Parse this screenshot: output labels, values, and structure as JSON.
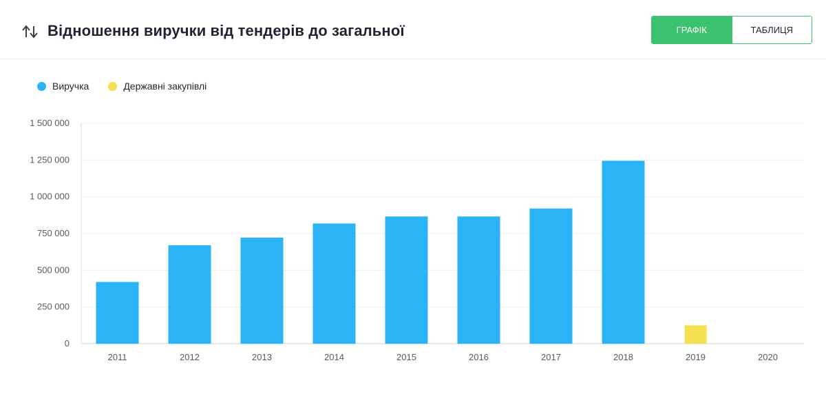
{
  "header": {
    "title": "Відношення виручки від тендерів до загальної",
    "tabs": [
      {
        "label": "ГРАФІК",
        "active": true
      },
      {
        "label": "ТАБЛИЦЯ",
        "active": false
      }
    ]
  },
  "colors": {
    "revenue": "#2bb4f5",
    "procurement": "#f5e04f",
    "accent": "#3cc26f"
  },
  "icons": {
    "sort": "sort-arrows-icon"
  },
  "chart_data": {
    "type": "bar",
    "categories": [
      "2011",
      "2012",
      "2013",
      "2014",
      "2015",
      "2016",
      "2017",
      "2018",
      "2019",
      "2020"
    ],
    "series": [
      {
        "name": "Виручка",
        "color": "#2bb4f5",
        "values": [
          420000,
          670000,
          722000,
          818000,
          866000,
          866000,
          920000,
          1245000,
          null,
          null
        ]
      },
      {
        "name": "Державні закупівлі",
        "color": "#f5e04f",
        "values": [
          null,
          null,
          null,
          null,
          null,
          null,
          null,
          null,
          125000,
          null
        ]
      }
    ],
    "yticks": [
      "1 500 000",
      "1 250 000",
      "1 000 000",
      "750 000",
      "500 000",
      "250 000",
      "0"
    ],
    "ylim": [
      0,
      1500000
    ],
    "grid": true,
    "legend": "top-left"
  }
}
